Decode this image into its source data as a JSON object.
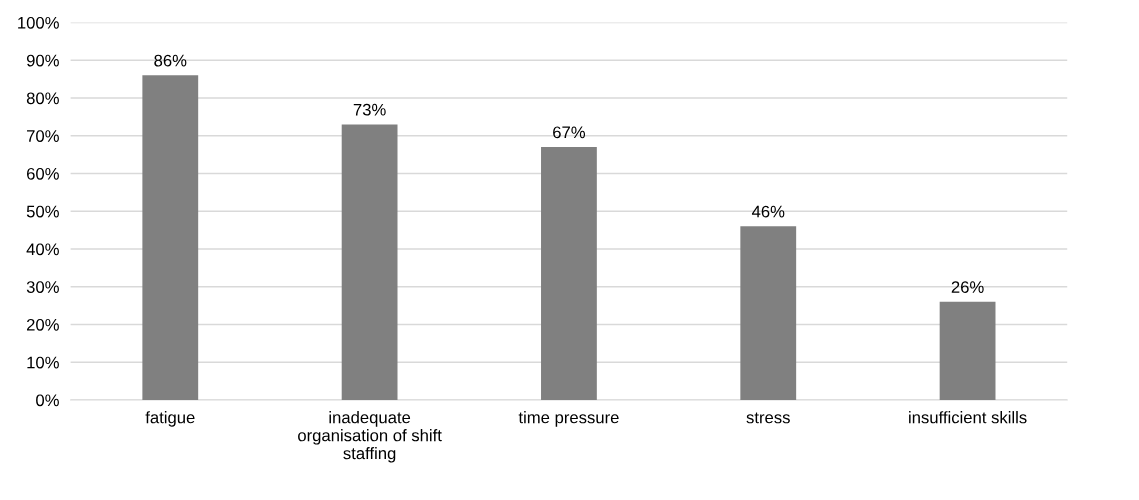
{
  "chart_data": {
    "type": "bar",
    "categories": [
      "fatigue",
      "inadequate organisation of shift staffing",
      "time pressure",
      "stress",
      "insufficient skills"
    ],
    "values": [
      86,
      73,
      67,
      46,
      26
    ],
    "value_labels": [
      "86%",
      "73%",
      "67%",
      "46%",
      "26%"
    ],
    "color": "#808080",
    "ylim": [
      0,
      100
    ],
    "yticks": [
      {
        "value": 0,
        "label": "0%"
      },
      {
        "value": 10,
        "label": "10%"
      },
      {
        "value": 20,
        "label": "20%"
      },
      {
        "value": 30,
        "label": "30%"
      },
      {
        "value": 40,
        "label": "40%"
      },
      {
        "value": 50,
        "label": "50%"
      },
      {
        "value": 60,
        "label": "60%"
      },
      {
        "value": 70,
        "label": "70%"
      },
      {
        "value": 80,
        "label": "80%"
      },
      {
        "value": 90,
        "label": "90%"
      },
      {
        "value": 100,
        "label": "100%"
      }
    ],
    "grid": "y",
    "legend": false
  }
}
